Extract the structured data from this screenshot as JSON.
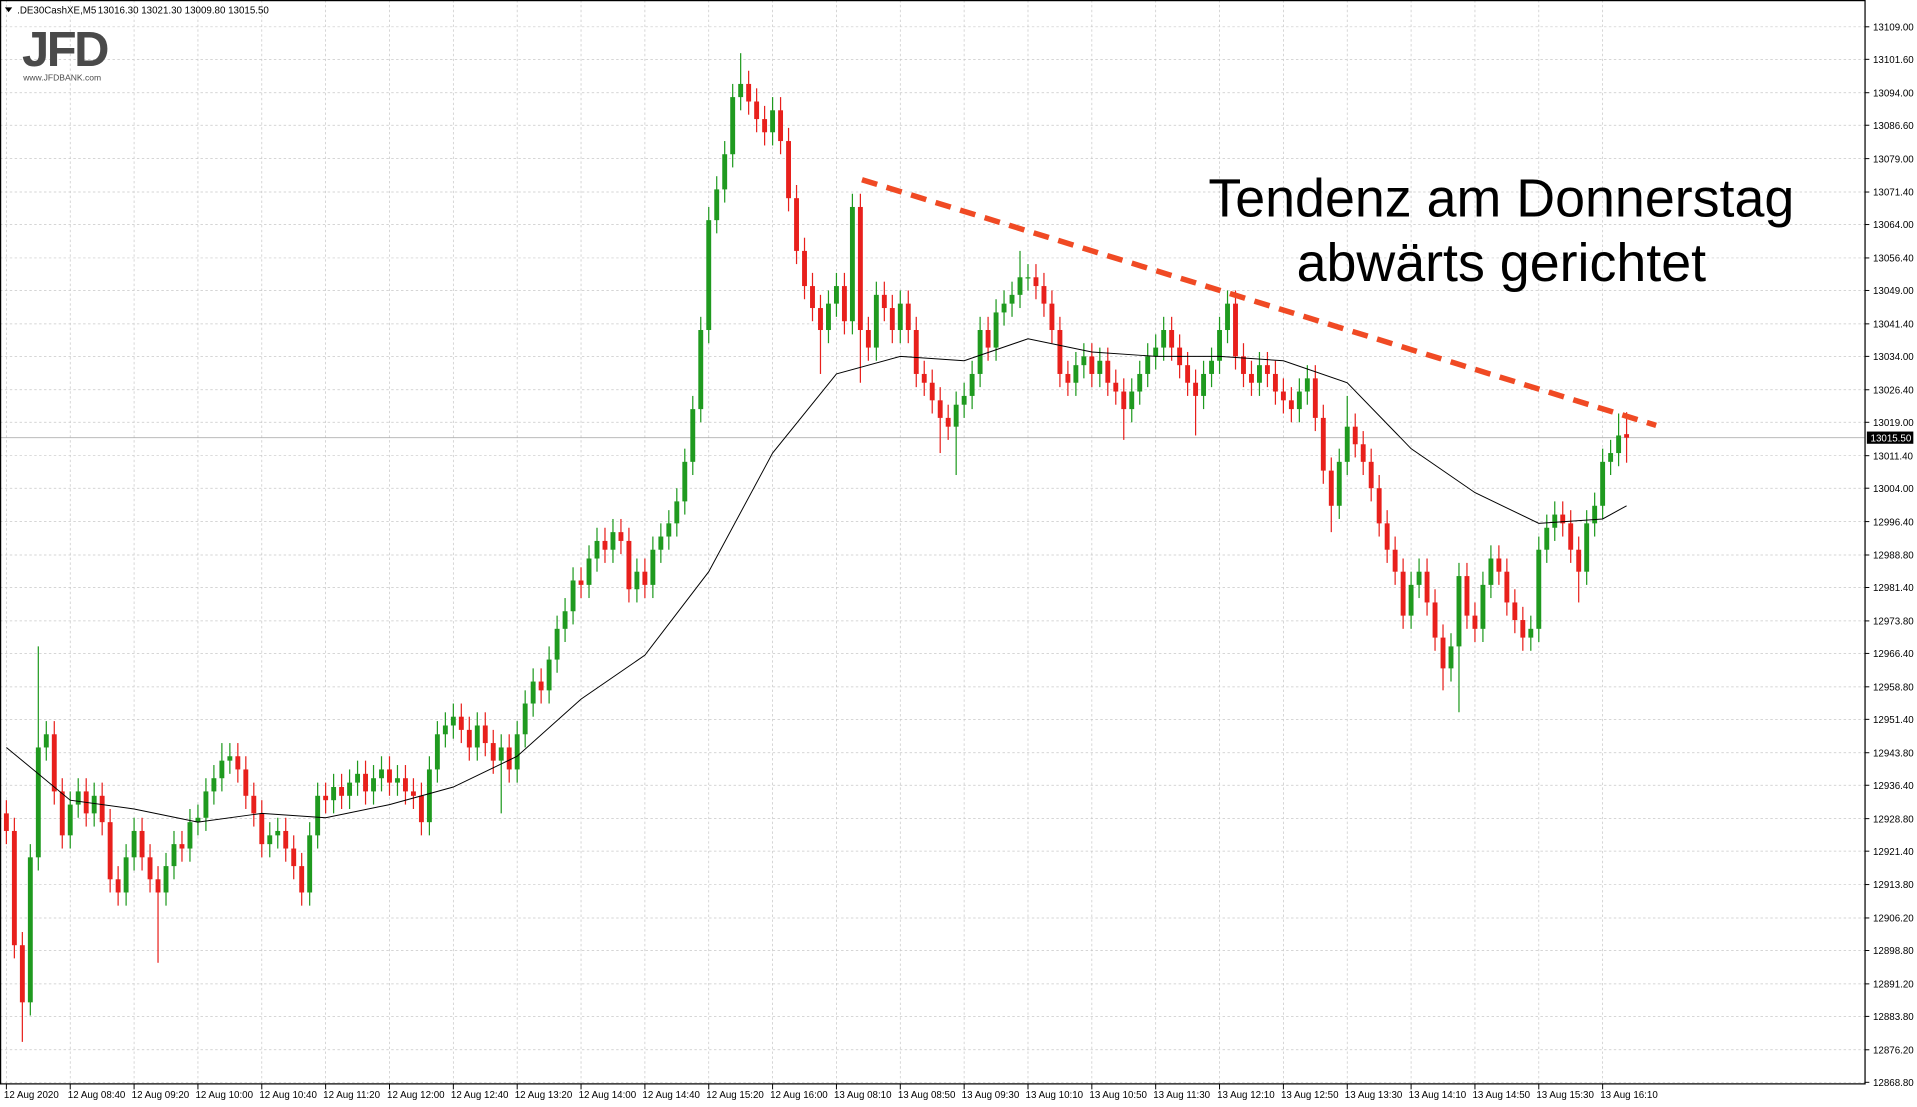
{
  "header": {
    "symbol": ".DE30CashXE,M5",
    "quote": "13016.30 13021.30 13009.80 13015.50"
  },
  "logo": {
    "name": "JFD",
    "url": "www.JFDBANK.com"
  },
  "chart_data": {
    "type": "candlestick",
    "annotation": [
      "Tendenz am Donnerstag",
      "abwärts gerichtet"
    ],
    "bull_color": "#1f9a1f",
    "bear_color": "#e8201c",
    "grid": true,
    "xlim": [
      -0.8,
      232.8
    ],
    "ylim": [
      12868.3,
      13115.1
    ],
    "xticks": [
      {
        "value": 0,
        "label": "12 Aug 2020"
      },
      {
        "value": 8,
        "label": "12 Aug 08:40"
      },
      {
        "value": 16,
        "label": "12 Aug 09:20"
      },
      {
        "value": 24,
        "label": "12 Aug 10:00"
      },
      {
        "value": 32,
        "label": "12 Aug 10:40"
      },
      {
        "value": 40,
        "label": "12 Aug 11:20"
      },
      {
        "value": 48,
        "label": "12 Aug 12:00"
      },
      {
        "value": 56,
        "label": "12 Aug 12:40"
      },
      {
        "value": 64,
        "label": "12 Aug 13:20"
      },
      {
        "value": 72,
        "label": "12 Aug 14:00"
      },
      {
        "value": 80,
        "label": "12 Aug 14:40"
      },
      {
        "value": 88,
        "label": "12 Aug 15:20"
      },
      {
        "value": 96,
        "label": "12 Aug 16:00"
      },
      {
        "value": 104,
        "label": "13 Aug 08:10"
      },
      {
        "value": 112,
        "label": "13 Aug 08:50"
      },
      {
        "value": 120,
        "label": "13 Aug 09:30"
      },
      {
        "value": 128,
        "label": "13 Aug 10:10"
      },
      {
        "value": 136,
        "label": "13 Aug 10:50"
      },
      {
        "value": 144,
        "label": "13 Aug 11:30"
      },
      {
        "value": 152,
        "label": "13 Aug 12:10"
      },
      {
        "value": 160,
        "label": "13 Aug 12:50"
      },
      {
        "value": 168,
        "label": "13 Aug 13:30"
      },
      {
        "value": 176,
        "label": "13 Aug 14:10"
      },
      {
        "value": 184,
        "label": "13 Aug 14:50"
      },
      {
        "value": 192,
        "label": "13 Aug 15:30"
      },
      {
        "value": 200,
        "label": "13 Aug 16:10"
      }
    ],
    "yticks": [
      {
        "value": 13109.0,
        "label": "13109.00"
      },
      {
        "value": 13101.6,
        "label": "13101.60"
      },
      {
        "value": 13094.0,
        "label": "13094.00"
      },
      {
        "value": 13086.6,
        "label": "13086.60"
      },
      {
        "value": 13079.0,
        "label": "13079.00"
      },
      {
        "value": 13071.4,
        "label": "13071.40"
      },
      {
        "value": 13064.0,
        "label": "13064.00"
      },
      {
        "value": 13056.4,
        "label": "13056.40"
      },
      {
        "value": 13049.0,
        "label": "13049.00"
      },
      {
        "value": 13041.4,
        "label": "13041.40"
      },
      {
        "value": 13034.0,
        "label": "13034.00"
      },
      {
        "value": 13026.4,
        "label": "13026.40"
      },
      {
        "value": 13019.0,
        "label": "13019.00"
      },
      {
        "value": 13011.4,
        "label": "13011.40"
      },
      {
        "value": 13004.0,
        "label": "13004.00"
      },
      {
        "value": 12996.4,
        "label": "12996.40"
      },
      {
        "value": 12988.8,
        "label": "12988.80"
      },
      {
        "value": 12981.4,
        "label": "12981.40"
      },
      {
        "value": 12973.8,
        "label": "12973.80"
      },
      {
        "value": 12966.4,
        "label": "12966.40"
      },
      {
        "value": 12958.8,
        "label": "12958.80"
      },
      {
        "value": 12951.4,
        "label": "12951.40"
      },
      {
        "value": 12943.8,
        "label": "12943.80"
      },
      {
        "value": 12936.4,
        "label": "12936.40"
      },
      {
        "value": 12928.8,
        "label": "12928.80"
      },
      {
        "value": 12921.4,
        "label": "12921.40"
      },
      {
        "value": 12913.8,
        "label": "12913.80"
      },
      {
        "value": 12906.2,
        "label": "12906.20"
      },
      {
        "value": 12898.8,
        "label": "12898.80"
      },
      {
        "value": 12891.2,
        "label": "12891.20"
      },
      {
        "value": 12883.8,
        "label": "12883.80"
      },
      {
        "value": 12876.2,
        "label": "12876.20"
      },
      {
        "value": 12868.8,
        "label": "12868.80"
      }
    ],
    "current_price": {
      "value": 13015.5,
      "label": "13015.50"
    },
    "trendline": {
      "x": [
        107.2,
        206.7
      ],
      "values": [
        13074.2,
        13018.3
      ],
      "color": "#f04a24"
    },
    "ma": {
      "color": "#000000",
      "x": [
        0,
        8,
        16,
        24,
        32,
        40,
        48,
        56,
        64,
        72,
        80,
        88,
        96,
        104,
        112,
        120,
        128,
        136,
        144,
        152,
        160,
        168,
        176,
        184,
        192,
        200,
        203
      ],
      "values": [
        12945,
        12933,
        12931,
        12928,
        12930,
        12929,
        12932,
        12936,
        12943,
        12956,
        12966,
        12985,
        13012,
        13030,
        13034,
        13033,
        13038,
        13035,
        13034,
        13034,
        13033,
        13028,
        13013,
        13003,
        12996,
        12997,
        13000
      ]
    },
    "open": [
      12930,
      12926,
      12900,
      12887,
      12920,
      12945,
      12948,
      12935,
      12925,
      12932,
      12935,
      12930,
      12934,
      12928,
      12915,
      12912,
      12920,
      12926,
      12920,
      12915,
      12912,
      12918,
      12923,
      12922,
      12928,
      12929,
      12935,
      12938,
      12942,
      12943,
      12940,
      12934,
      12930,
      12923,
      12925,
      12926,
      12922,
      12918,
      12912,
      12925,
      12934,
      12933,
      12936,
      12934,
      12937,
      12939,
      12935,
      12938,
      12940,
      12937,
      12938,
      12935,
      12934,
      12928,
      12940,
      12948,
      12950,
      12952,
      12949,
      12945,
      12950,
      12946,
      12942,
      12945,
      12940,
      12948,
      12955,
      12960,
      12958,
      12965,
      12972,
      12976,
      12983,
      12982,
      12988,
      12992,
      12990,
      12994,
      12992,
      12981,
      12985,
      12982,
      12990,
      12993,
      12996,
      13001,
      13010,
      13022,
      13040,
      13065,
      13072,
      13080,
      13093,
      13096,
      13092,
      13088,
      13085,
      13090,
      13083,
      13070,
      13058,
      13050,
      13045,
      13040,
      13046,
      13050,
      13042,
      13068,
      13040,
      13036,
      13048,
      13045,
      13040,
      13046,
      13040,
      13030,
      13028,
      13024,
      13020,
      13018,
      13023,
      13025,
      13030,
      13040,
      13036,
      13044,
      13046,
      13048,
      13052,
      13052,
      13050,
      13046,
      13040,
      13030,
      13028,
      13032,
      13034,
      13030,
      13033,
      13028,
      13026,
      13022,
      13026,
      13030,
      13034,
      13036,
      13040,
      13036,
      13032,
      13028,
      13025,
      13030,
      13033,
      13040,
      13046,
      13034,
      13030,
      13028,
      13032,
      13030,
      13026,
      13024,
      13022,
      13026,
      13029,
      13020,
      13008,
      13000,
      13010,
      13018,
      13014,
      13010,
      13004,
      12996,
      12990,
      12985,
      12975,
      12982,
      12985,
      12978,
      12970,
      12963,
      12968,
      12984,
      12975,
      12972,
      12982,
      12988,
      12985,
      12978,
      12974,
      12970,
      12972,
      12990,
      12995,
      12998,
      12996,
      12990,
      12985,
      12996,
      13000,
      13010,
      13012,
      13016.3
    ],
    "high": [
      12933,
      12929,
      12903,
      12923,
      12968,
      12951,
      12951,
      12938,
      12935,
      12938,
      12938,
      12937,
      12937,
      12931,
      12918,
      12923,
      12929,
      12929,
      12923,
      12918,
      12921,
      12926,
      12926,
      12931,
      12932,
      12938,
      12941,
      12946,
      12946,
      12946,
      12943,
      12937,
      12933,
      12928,
      12929,
      12929,
      12925,
      12921,
      12928,
      12937,
      12937,
      12939,
      12939,
      12940,
      12942,
      12942,
      12941,
      12943,
      12943,
      12941,
      12941,
      12938,
      12937,
      12943,
      12951,
      12953,
      12955,
      12955,
      12952,
      12953,
      12953,
      12949,
      12948,
      12948,
      12951,
      12958,
      12963,
      12963,
      12968,
      12975,
      12979,
      12986,
      12986,
      12991,
      12995,
      12995,
      12997,
      12997,
      12995,
      12988,
      12988,
      12993,
      12996,
      12999,
      13004,
      13013,
      13025,
      13043,
      13068,
      13075,
      13083,
      13096,
      13103,
      13099,
      13095,
      13091,
      13093,
      13093,
      13086,
      13073,
      13061,
      13053,
      13048,
      13049,
      13053,
      13053,
      13071,
      13071,
      13043,
      13051,
      13051,
      13048,
      13049,
      13049,
      13043,
      13033,
      13031,
      13027,
      13023,
      13026,
      13028,
      13033,
      13043,
      13043,
      13047,
      13049,
      13051,
      13058,
      13055,
      13055,
      13053,
      13049,
      13043,
      13033,
      13035,
      13037,
      13037,
      13036,
      13036,
      13031,
      13029,
      13029,
      13033,
      13037,
      13039,
      13043,
      13043,
      13039,
      13035,
      13031,
      13033,
      13036,
      13043,
      13049,
      13049,
      13037,
      13033,
      13035,
      13035,
      13033,
      13029,
      13027,
      13029,
      13032,
      13032,
      13023,
      13011,
      13013,
      13025,
      13021,
      13017,
      13013,
      13007,
      12999,
      12993,
      12988,
      12985,
      12988,
      12988,
      12981,
      12973,
      12971,
      12987,
      12987,
      12978,
      12985,
      12991,
      12991,
      12988,
      12981,
      12977,
      12975,
      12993,
      12998,
      13001,
      13001,
      12999,
      12993,
      12999,
      13003,
      13013,
      13015,
      13021,
      13021.3
    ],
    "low": [
      12923,
      12897,
      12878,
      12884,
      12917,
      12942,
      12932,
      12922,
      12922,
      12929,
      12927,
      12927,
      12925,
      12912,
      12909,
      12909,
      12917,
      12917,
      12912,
      12896,
      12909,
      12915,
      12919,
      12919,
      12925,
      12926,
      12932,
      12935,
      12939,
      12937,
      12931,
      12927,
      12920,
      12920,
      12922,
      12919,
      12915,
      12909,
      12909,
      12922,
      12930,
      12930,
      12931,
      12931,
      12934,
      12932,
      12932,
      12935,
      12934,
      12934,
      12932,
      12931,
      12925,
      12925,
      12937,
      12945,
      12947,
      12946,
      12942,
      12942,
      12943,
      12939,
      12930,
      12937,
      12937,
      12945,
      12952,
      12955,
      12955,
      12962,
      12969,
      12973,
      12979,
      12979,
      12985,
      12987,
      12987,
      12989,
      12978,
      12978,
      12979,
      12979,
      12987,
      12990,
      12993,
      12998,
      13007,
      13019,
      13037,
      13062,
      13069,
      13077,
      13090,
      13089,
      13085,
      13082,
      13082,
      13080,
      13067,
      13055,
      13047,
      13042,
      13030,
      13037,
      13043,
      13039,
      13039,
      13028,
      13033,
      13033,
      13042,
      13037,
      13037,
      13037,
      13027,
      13025,
      13021,
      13012,
      13015,
      13007,
      13020,
      13022,
      13027,
      13033,
      13033,
      13041,
      13043,
      13045,
      13049,
      13047,
      13043,
      13037,
      13027,
      13025,
      13025,
      13029,
      13027,
      13027,
      13025,
      13023,
      13015,
      13019,
      13023,
      13027,
      13031,
      13033,
      13033,
      13029,
      13025,
      13016,
      13022,
      13027,
      13030,
      13037,
      13031,
      13027,
      13025,
      13025,
      13027,
      13023,
      13021,
      13019,
      13019,
      13023,
      13017,
      13005,
      12994,
      12997,
      13007,
      13011,
      13007,
      13001,
      12993,
      12987,
      12982,
      12972,
      12972,
      12979,
      12975,
      12967,
      12958,
      12960,
      12953,
      12972,
      12969,
      12969,
      12979,
      12982,
      12975,
      12971,
      12967,
      12967,
      12969,
      12987,
      12992,
      12993,
      12987,
      12978,
      12982,
      12993,
      12997,
      13007,
      13009,
      13009.8
    ],
    "close": [
      12926,
      12900,
      12887,
      12920,
      12945,
      12948,
      12935,
      12925,
      12932,
      12935,
      12930,
      12934,
      12928,
      12915,
      12912,
      12920,
      12926,
      12920,
      12915,
      12912,
      12918,
      12923,
      12922,
      12928,
      12929,
      12935,
      12938,
      12942,
      12943,
      12940,
      12934,
      12930,
      12923,
      12925,
      12926,
      12922,
      12918,
      12912,
      12925,
      12934,
      12933,
      12936,
      12934,
      12937,
      12939,
      12935,
      12938,
      12940,
      12937,
      12938,
      12935,
      12934,
      12928,
      12940,
      12948,
      12950,
      12952,
      12949,
      12945,
      12950,
      12946,
      12942,
      12945,
      12940,
      12948,
      12955,
      12960,
      12958,
      12965,
      12972,
      12976,
      12983,
      12982,
      12988,
      12992,
      12990,
      12994,
      12992,
      12981,
      12985,
      12982,
      12990,
      12993,
      12996,
      13001,
      13010,
      13022,
      13040,
      13065,
      13072,
      13080,
      13093,
      13096,
      13092,
      13088,
      13085,
      13090,
      13083,
      13070,
      13058,
      13050,
      13045,
      13040,
      13046,
      13050,
      13042,
      13068,
      13040,
      13036,
      13048,
      13045,
      13040,
      13046,
      13040,
      13030,
      13028,
      13024,
      13020,
      13018,
      13023,
      13025,
      13030,
      13040,
      13036,
      13044,
      13046,
      13048,
      13052,
      13052,
      13050,
      13046,
      13040,
      13030,
      13028,
      13032,
      13034,
      13030,
      13033,
      13028,
      13026,
      13022,
      13026,
      13030,
      13034,
      13036,
      13040,
      13036,
      13032,
      13028,
      13025,
      13030,
      13033,
      13040,
      13046,
      13034,
      13030,
      13028,
      13032,
      13030,
      13026,
      13024,
      13022,
      13026,
      13029,
      13020,
      13008,
      13000,
      13010,
      13018,
      13014,
      13010,
      13004,
      12996,
      12990,
      12985,
      12975,
      12982,
      12985,
      12978,
      12970,
      12963,
      12968,
      12984,
      12975,
      12972,
      12982,
      12988,
      12985,
      12978,
      12974,
      12970,
      12972,
      12990,
      12995,
      12998,
      12996,
      12990,
      12985,
      12996,
      13000,
      13010,
      13012,
      13016,
      13015.5
    ]
  }
}
